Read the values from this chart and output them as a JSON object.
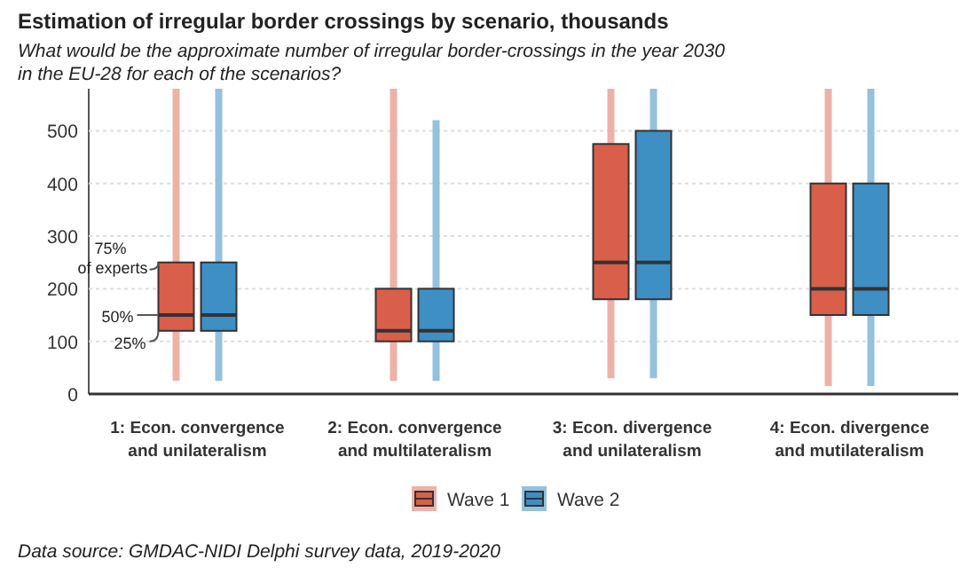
{
  "chart_data": {
    "type": "box",
    "title": "Estimation of irregular border crossings by scenario, thousands",
    "subtitle": "What would be the approximate number of irregular border-crossings in the year 2030 in the EU-28 for each of the scenarios?",
    "categories": [
      "1: Econ. convergence and unilateralism",
      "2: Econ. convergence and multilateralism",
      "3: Econ. divergence and unilateralism",
      "4: Econ. divergence and mutilateralism"
    ],
    "series": [
      {
        "name": "Wave 1",
        "color": "#d95f4b",
        "boxes": [
          {
            "low": 25,
            "q1": 120,
            "median": 150,
            "q3": 250,
            "high": 580
          },
          {
            "low": 25,
            "q1": 100,
            "median": 120,
            "q3": 200,
            "high": 580
          },
          {
            "low": 30,
            "q1": 180,
            "median": 250,
            "q3": 475,
            "high": 580
          },
          {
            "low": 15,
            "q1": 150,
            "median": 200,
            "q3": 400,
            "high": 580
          }
        ]
      },
      {
        "name": "Wave 2",
        "color": "#3e8fc4",
        "boxes": [
          {
            "low": 25,
            "q1": 120,
            "median": 150,
            "q3": 250,
            "high": 580
          },
          {
            "low": 25,
            "q1": 100,
            "median": 120,
            "q3": 200,
            "high": 520
          },
          {
            "low": 30,
            "q1": 180,
            "median": 250,
            "q3": 500,
            "high": 580
          },
          {
            "low": 15,
            "q1": 150,
            "median": 200,
            "q3": 400,
            "high": 580
          }
        ]
      }
    ],
    "ylim": [
      0,
      580
    ],
    "yticks": [
      0,
      100,
      200,
      300,
      400,
      500
    ],
    "grid": "y",
    "legend": "bottom",
    "annotations": [
      "75% of experts",
      "50%",
      "25%",
      "Data source: GMDAC-NIDI Delphi survey data, 2019-2020"
    ]
  }
}
